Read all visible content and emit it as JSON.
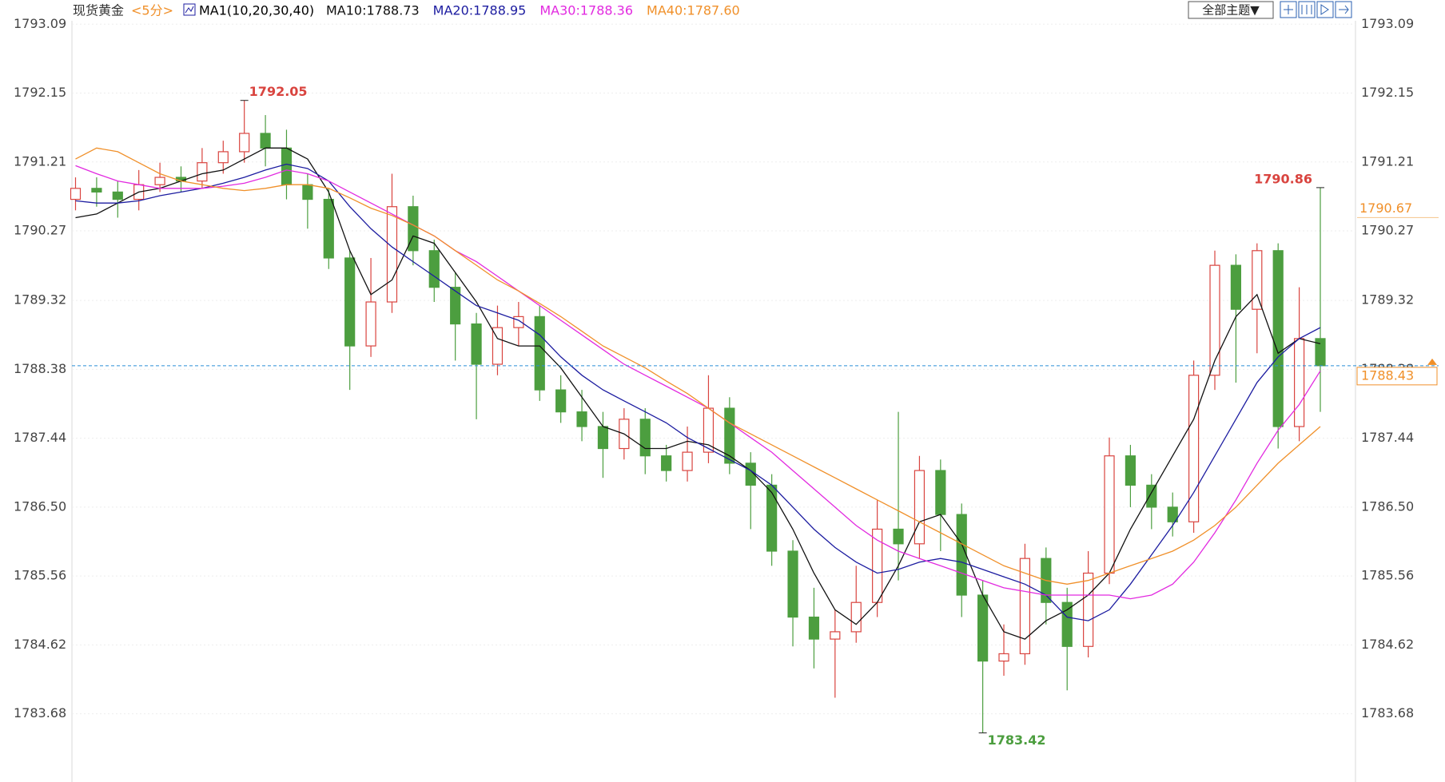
{
  "chart_data": {
    "type": "candlestick",
    "symbol": "现货黄金",
    "period": "<5分>",
    "indicator": "MA1(10,20,30,40)",
    "up_color": "#d9443f",
    "down_color": "#4c9e3f",
    "open": [
      1790.7,
      1790.85,
      1790.8,
      1790.7,
      1790.9,
      1791.0,
      1790.95,
      1791.2,
      1791.35,
      1791.6,
      1791.4,
      1790.9,
      1790.7,
      1789.9,
      1788.7,
      1789.3,
      1790.6,
      1790.0,
      1789.5,
      1789.0,
      1788.45,
      1788.95,
      1789.1,
      1788.1,
      1787.8,
      1787.6,
      1787.3,
      1787.7,
      1787.2,
      1787.0,
      1787.25,
      1787.85,
      1787.1,
      1786.8,
      1785.9,
      1785.0,
      1784.7,
      1784.8,
      1785.2,
      1786.2,
      1786.0,
      1787.0,
      1786.4,
      1785.3,
      1784.4,
      1784.5,
      1785.8,
      1785.2,
      1784.6,
      1785.6,
      1787.2,
      1786.8,
      1786.5,
      1786.3,
      1788.3,
      1789.8,
      1789.2,
      1790.0,
      1787.6,
      1788.8
    ],
    "high": [
      1791.0,
      1791.0,
      1790.95,
      1791.1,
      1791.2,
      1791.15,
      1791.4,
      1791.5,
      1792.05,
      1791.85,
      1791.65,
      1791.05,
      1790.85,
      1790.0,
      1789.9,
      1791.05,
      1790.75,
      1790.15,
      1789.7,
      1789.15,
      1789.25,
      1789.3,
      1789.25,
      1788.3,
      1788.1,
      1787.8,
      1787.85,
      1787.85,
      1787.35,
      1787.6,
      1788.3,
      1788.0,
      1787.25,
      1786.95,
      1786.05,
      1785.4,
      1785.1,
      1785.7,
      1786.6,
      1787.8,
      1787.2,
      1787.15,
      1786.55,
      1785.5,
      1784.9,
      1786.0,
      1785.95,
      1785.4,
      1785.9,
      1787.45,
      1787.35,
      1786.95,
      1786.7,
      1788.5,
      1790.0,
      1789.95,
      1790.1,
      1790.1,
      1789.5,
      1790.86
    ],
    "low": [
      1790.55,
      1790.6,
      1790.45,
      1790.55,
      1790.8,
      1790.8,
      1790.85,
      1791.05,
      1791.2,
      1791.15,
      1790.7,
      1790.3,
      1789.75,
      1788.1,
      1788.55,
      1789.15,
      1789.8,
      1789.3,
      1788.5,
      1787.7,
      1788.3,
      1788.7,
      1787.95,
      1787.65,
      1787.4,
      1786.9,
      1787.15,
      1786.95,
      1786.85,
      1786.85,
      1787.1,
      1786.95,
      1786.2,
      1785.7,
      1784.6,
      1784.3,
      1783.9,
      1784.65,
      1785.0,
      1785.5,
      1785.8,
      1785.9,
      1785.0,
      1783.42,
      1784.2,
      1784.35,
      1784.9,
      1784.0,
      1784.45,
      1785.45,
      1786.5,
      1786.2,
      1786.1,
      1786.15,
      1788.1,
      1788.2,
      1788.6,
      1787.3,
      1787.4,
      1787.8
    ],
    "close": [
      1790.85,
      1790.8,
      1790.7,
      1790.9,
      1791.0,
      1790.95,
      1791.2,
      1791.35,
      1791.6,
      1791.4,
      1790.9,
      1790.7,
      1789.9,
      1788.7,
      1789.3,
      1790.6,
      1790.0,
      1789.5,
      1789.0,
      1788.45,
      1788.95,
      1789.1,
      1788.1,
      1787.8,
      1787.6,
      1787.3,
      1787.7,
      1787.2,
      1787.0,
      1787.25,
      1787.85,
      1787.1,
      1786.8,
      1785.9,
      1785.0,
      1784.7,
      1784.8,
      1785.2,
      1786.2,
      1786.0,
      1787.0,
      1786.4,
      1785.3,
      1784.4,
      1784.5,
      1785.8,
      1785.2,
      1784.6,
      1785.6,
      1787.2,
      1786.8,
      1786.5,
      1786.3,
      1788.3,
      1789.8,
      1789.2,
      1790.0,
      1787.6,
      1788.8,
      1788.43
    ],
    "series": [
      {
        "name": "MA10:1788.73",
        "color": "#111111",
        "values": [
          1790.45,
          1790.5,
          1790.65,
          1790.8,
          1790.85,
          1790.95,
          1791.05,
          1791.1,
          1791.25,
          1791.4,
          1791.4,
          1791.25,
          1790.8,
          1790.0,
          1789.4,
          1789.6,
          1790.2,
          1790.1,
          1789.7,
          1789.3,
          1788.8,
          1788.7,
          1788.7,
          1788.4,
          1788.0,
          1787.6,
          1787.5,
          1787.3,
          1787.3,
          1787.4,
          1787.35,
          1787.2,
          1787.0,
          1786.7,
          1786.2,
          1785.6,
          1785.1,
          1784.9,
          1785.2,
          1785.7,
          1786.3,
          1786.4,
          1786.0,
          1785.3,
          1784.8,
          1784.7,
          1784.95,
          1785.1,
          1785.3,
          1785.6,
          1786.2,
          1786.7,
          1787.2,
          1787.7,
          1788.5,
          1789.1,
          1789.4,
          1788.6,
          1788.8,
          1788.73
        ]
      },
      {
        "name": "MA20:1788.95",
        "color": "#1c1ca0",
        "values": [
          1790.68,
          1790.65,
          1790.65,
          1790.68,
          1790.75,
          1790.8,
          1790.85,
          1790.92,
          1791.0,
          1791.1,
          1791.18,
          1791.12,
          1790.95,
          1790.6,
          1790.3,
          1790.05,
          1789.85,
          1789.65,
          1789.45,
          1789.25,
          1789.15,
          1789.05,
          1788.85,
          1788.55,
          1788.3,
          1788.1,
          1787.95,
          1787.8,
          1787.65,
          1787.45,
          1787.3,
          1787.15,
          1787.0,
          1786.8,
          1786.5,
          1786.2,
          1785.95,
          1785.75,
          1785.6,
          1785.65,
          1785.75,
          1785.8,
          1785.75,
          1785.65,
          1785.55,
          1785.45,
          1785.3,
          1785.0,
          1784.95,
          1785.1,
          1785.45,
          1785.85,
          1786.25,
          1786.7,
          1787.2,
          1787.7,
          1788.2,
          1788.55,
          1788.8,
          1788.95
        ]
      },
      {
        "name": "MA30:1788.36",
        "color": "#e22ae0",
        "values": [
          1791.16,
          1791.05,
          1790.95,
          1790.9,
          1790.85,
          1790.85,
          1790.85,
          1790.88,
          1790.92,
          1791.0,
          1791.1,
          1791.05,
          1790.95,
          1790.8,
          1790.65,
          1790.5,
          1790.35,
          1790.2,
          1790.0,
          1789.85,
          1789.65,
          1789.45,
          1789.25,
          1789.05,
          1788.85,
          1788.65,
          1788.45,
          1788.3,
          1788.15,
          1788.0,
          1787.85,
          1787.65,
          1787.45,
          1787.25,
          1787.0,
          1786.75,
          1786.5,
          1786.25,
          1786.05,
          1785.9,
          1785.8,
          1785.7,
          1785.6,
          1785.5,
          1785.4,
          1785.35,
          1785.3,
          1785.3,
          1785.3,
          1785.3,
          1785.25,
          1785.3,
          1785.45,
          1785.75,
          1786.15,
          1786.6,
          1787.1,
          1787.55,
          1787.9,
          1788.36
        ]
      },
      {
        "name": "MA40:1787.60",
        "color": "#f0902a",
        "values": [
          1791.25,
          1791.4,
          1791.35,
          1791.2,
          1791.05,
          1790.95,
          1790.9,
          1790.85,
          1790.82,
          1790.85,
          1790.9,
          1790.9,
          1790.85,
          1790.72,
          1790.58,
          1790.48,
          1790.35,
          1790.2,
          1790.0,
          1789.8,
          1789.6,
          1789.45,
          1789.28,
          1789.1,
          1788.9,
          1788.7,
          1788.55,
          1788.4,
          1788.22,
          1788.05,
          1787.85,
          1787.65,
          1787.5,
          1787.35,
          1787.2,
          1787.05,
          1786.9,
          1786.75,
          1786.6,
          1786.45,
          1786.3,
          1786.15,
          1786.0,
          1785.85,
          1785.7,
          1785.6,
          1785.5,
          1785.45,
          1785.5,
          1785.6,
          1785.7,
          1785.8,
          1785.9,
          1786.05,
          1786.25,
          1786.5,
          1786.8,
          1787.1,
          1787.35,
          1787.6
        ]
      }
    ],
    "last_price": 1788.43,
    "marker_price": 1790.67,
    "ylim": [
      1782.75,
      1793.42
    ],
    "yticks": [
      1793.09,
      1792.15,
      1791.21,
      1790.27,
      1789.32,
      1788.38,
      1787.44,
      {
        "value": 1786.5,
        "label": "1786.50"
      },
      1785.56,
      1784.62,
      1783.68
    ],
    "grid": true,
    "theme_button": "全部主题▼"
  }
}
